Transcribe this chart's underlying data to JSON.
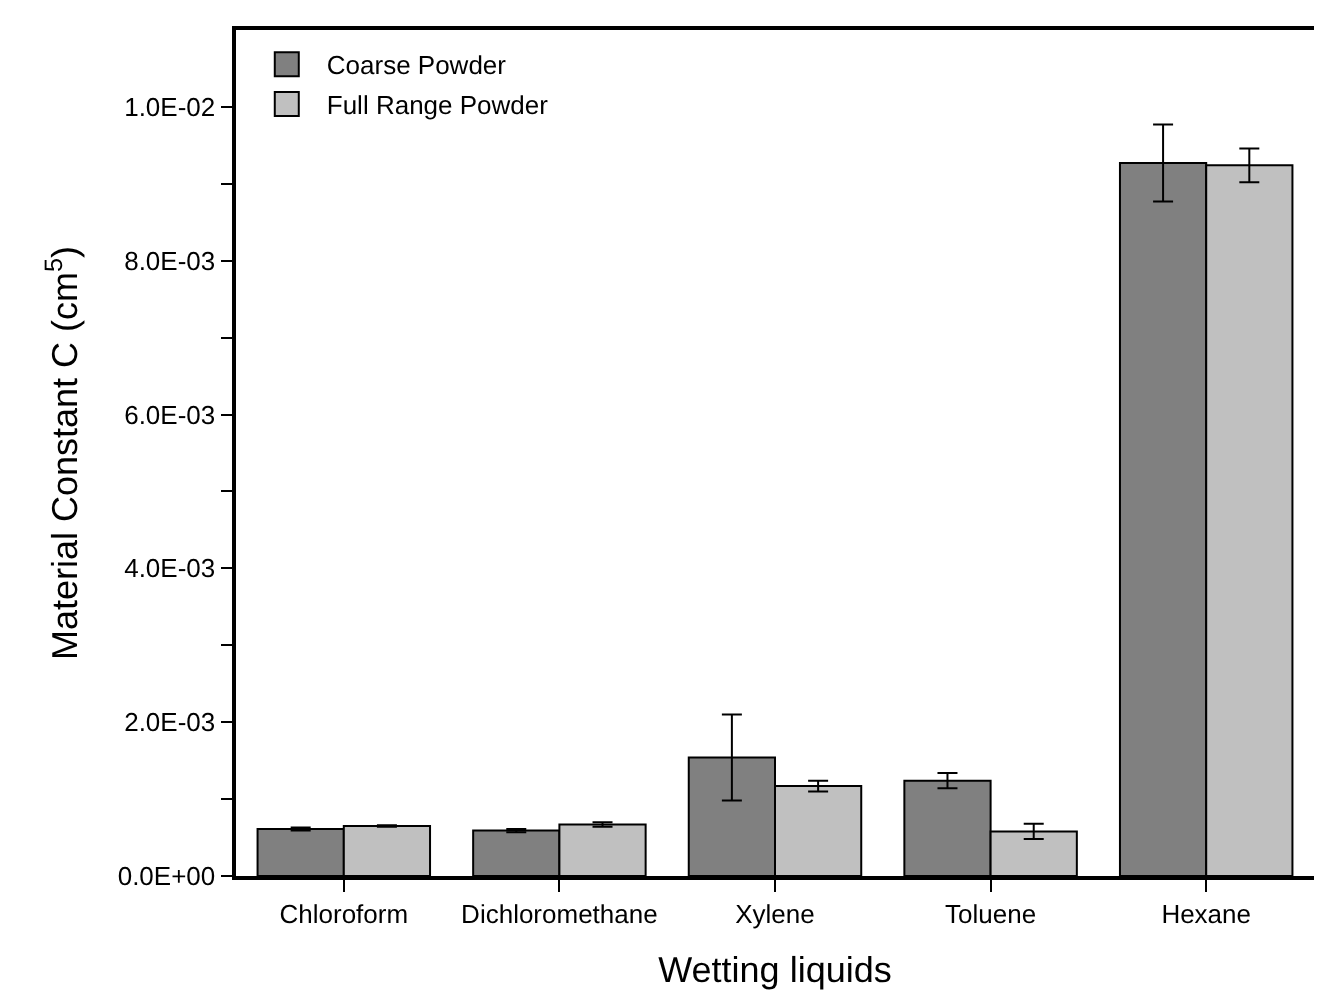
{
  "chart_data": {
    "type": "bar",
    "xlabel": "Wetting liquids",
    "ylabel": "Material Constant C (cm$^{5}$)",
    "categories": [
      "Chloroform",
      "Dichloromethane",
      "Xylene",
      "Toluene",
      "Hexane"
    ],
    "series": [
      {
        "name": "Coarse Powder",
        "color": "#808080",
        "values": [
          0.00061,
          0.00059,
          0.00154,
          0.00124,
          0.00927
        ],
        "errors": [
          2e-05,
          2e-05,
          0.00056,
          0.0001,
          0.0005
        ]
      },
      {
        "name": "Full Range Powder",
        "color": "#c0c0c0",
        "values": [
          0.00065,
          0.00067,
          0.00117,
          0.00058,
          0.00924
        ],
        "errors": [
          1e-05,
          3e-05,
          7e-05,
          0.0001,
          0.00022
        ]
      }
    ],
    "ylim": [
      0,
      0.011
    ],
    "yticks": [
      {
        "value": 0,
        "label": "0.0E+00"
      },
      {
        "value": 0.001,
        "label": null
      },
      {
        "value": 0.002,
        "label": "2.0E-03"
      },
      {
        "value": 0.003,
        "label": null
      },
      {
        "value": 0.004,
        "label": "4.0E-03"
      },
      {
        "value": 0.005,
        "label": null
      },
      {
        "value": 0.006,
        "label": "6.0E-03"
      },
      {
        "value": 0.007,
        "label": null
      },
      {
        "value": 0.008,
        "label": "8.0E-03"
      },
      {
        "value": 0.009,
        "label": null
      },
      {
        "value": 0.01,
        "label": "1.0E-02"
      }
    ],
    "legend": "top left"
  }
}
